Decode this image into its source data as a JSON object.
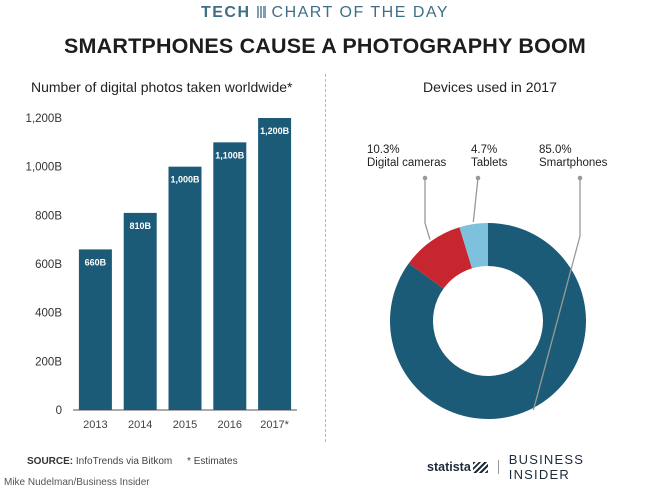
{
  "header": {
    "tech": "TECH",
    "chart_of_the_day": "CHART OF THE DAY"
  },
  "title": "SMARTPHONES CAUSE A PHOTOGRAPHY BOOM",
  "colors": {
    "bar": "#1c5b78",
    "smartphones": "#1c5b78",
    "digital_cameras": "#c8262e",
    "tablets": "#7ec1dc",
    "accent": "#3f6f86"
  },
  "footer": {
    "source_label": "SOURCE:",
    "source": "InfoTrends via Bitkom",
    "note": "* Estimates",
    "statista": "statista",
    "business_insider": "BUSINESS INSIDER",
    "credit": "Mike Nudelman/Business Insider"
  },
  "chart_data": [
    {
      "type": "bar",
      "title": "Number of digital photos taken worldwide*",
      "categories": [
        "2013",
        "2014",
        "2015",
        "2016",
        "2017*"
      ],
      "values": [
        660,
        810,
        1000,
        1100,
        1200
      ],
      "data_labels": [
        "660B",
        "810B",
        "1,000B",
        "1,100B",
        "1,200B"
      ],
      "ylim": [
        0,
        1200
      ],
      "yticks": [
        0,
        200,
        400,
        600,
        800,
        1000,
        1200
      ],
      "ytick_labels": [
        "0",
        "200B",
        "400B",
        "600B",
        "800B",
        "1,000B",
        "1,200B"
      ],
      "grid": false
    },
    {
      "type": "pie",
      "subtype": "donut",
      "title": "Devices used in 2017",
      "slices": [
        {
          "name": "Digital cameras",
          "value": 10.3,
          "label": "10.3%",
          "color": "#c8262e"
        },
        {
          "name": "Tablets",
          "value": 4.7,
          "label": "4.7%",
          "color": "#7ec1dc"
        },
        {
          "name": "Smartphones",
          "value": 85.0,
          "label": "85.0%",
          "color": "#1c5b78"
        }
      ]
    }
  ]
}
